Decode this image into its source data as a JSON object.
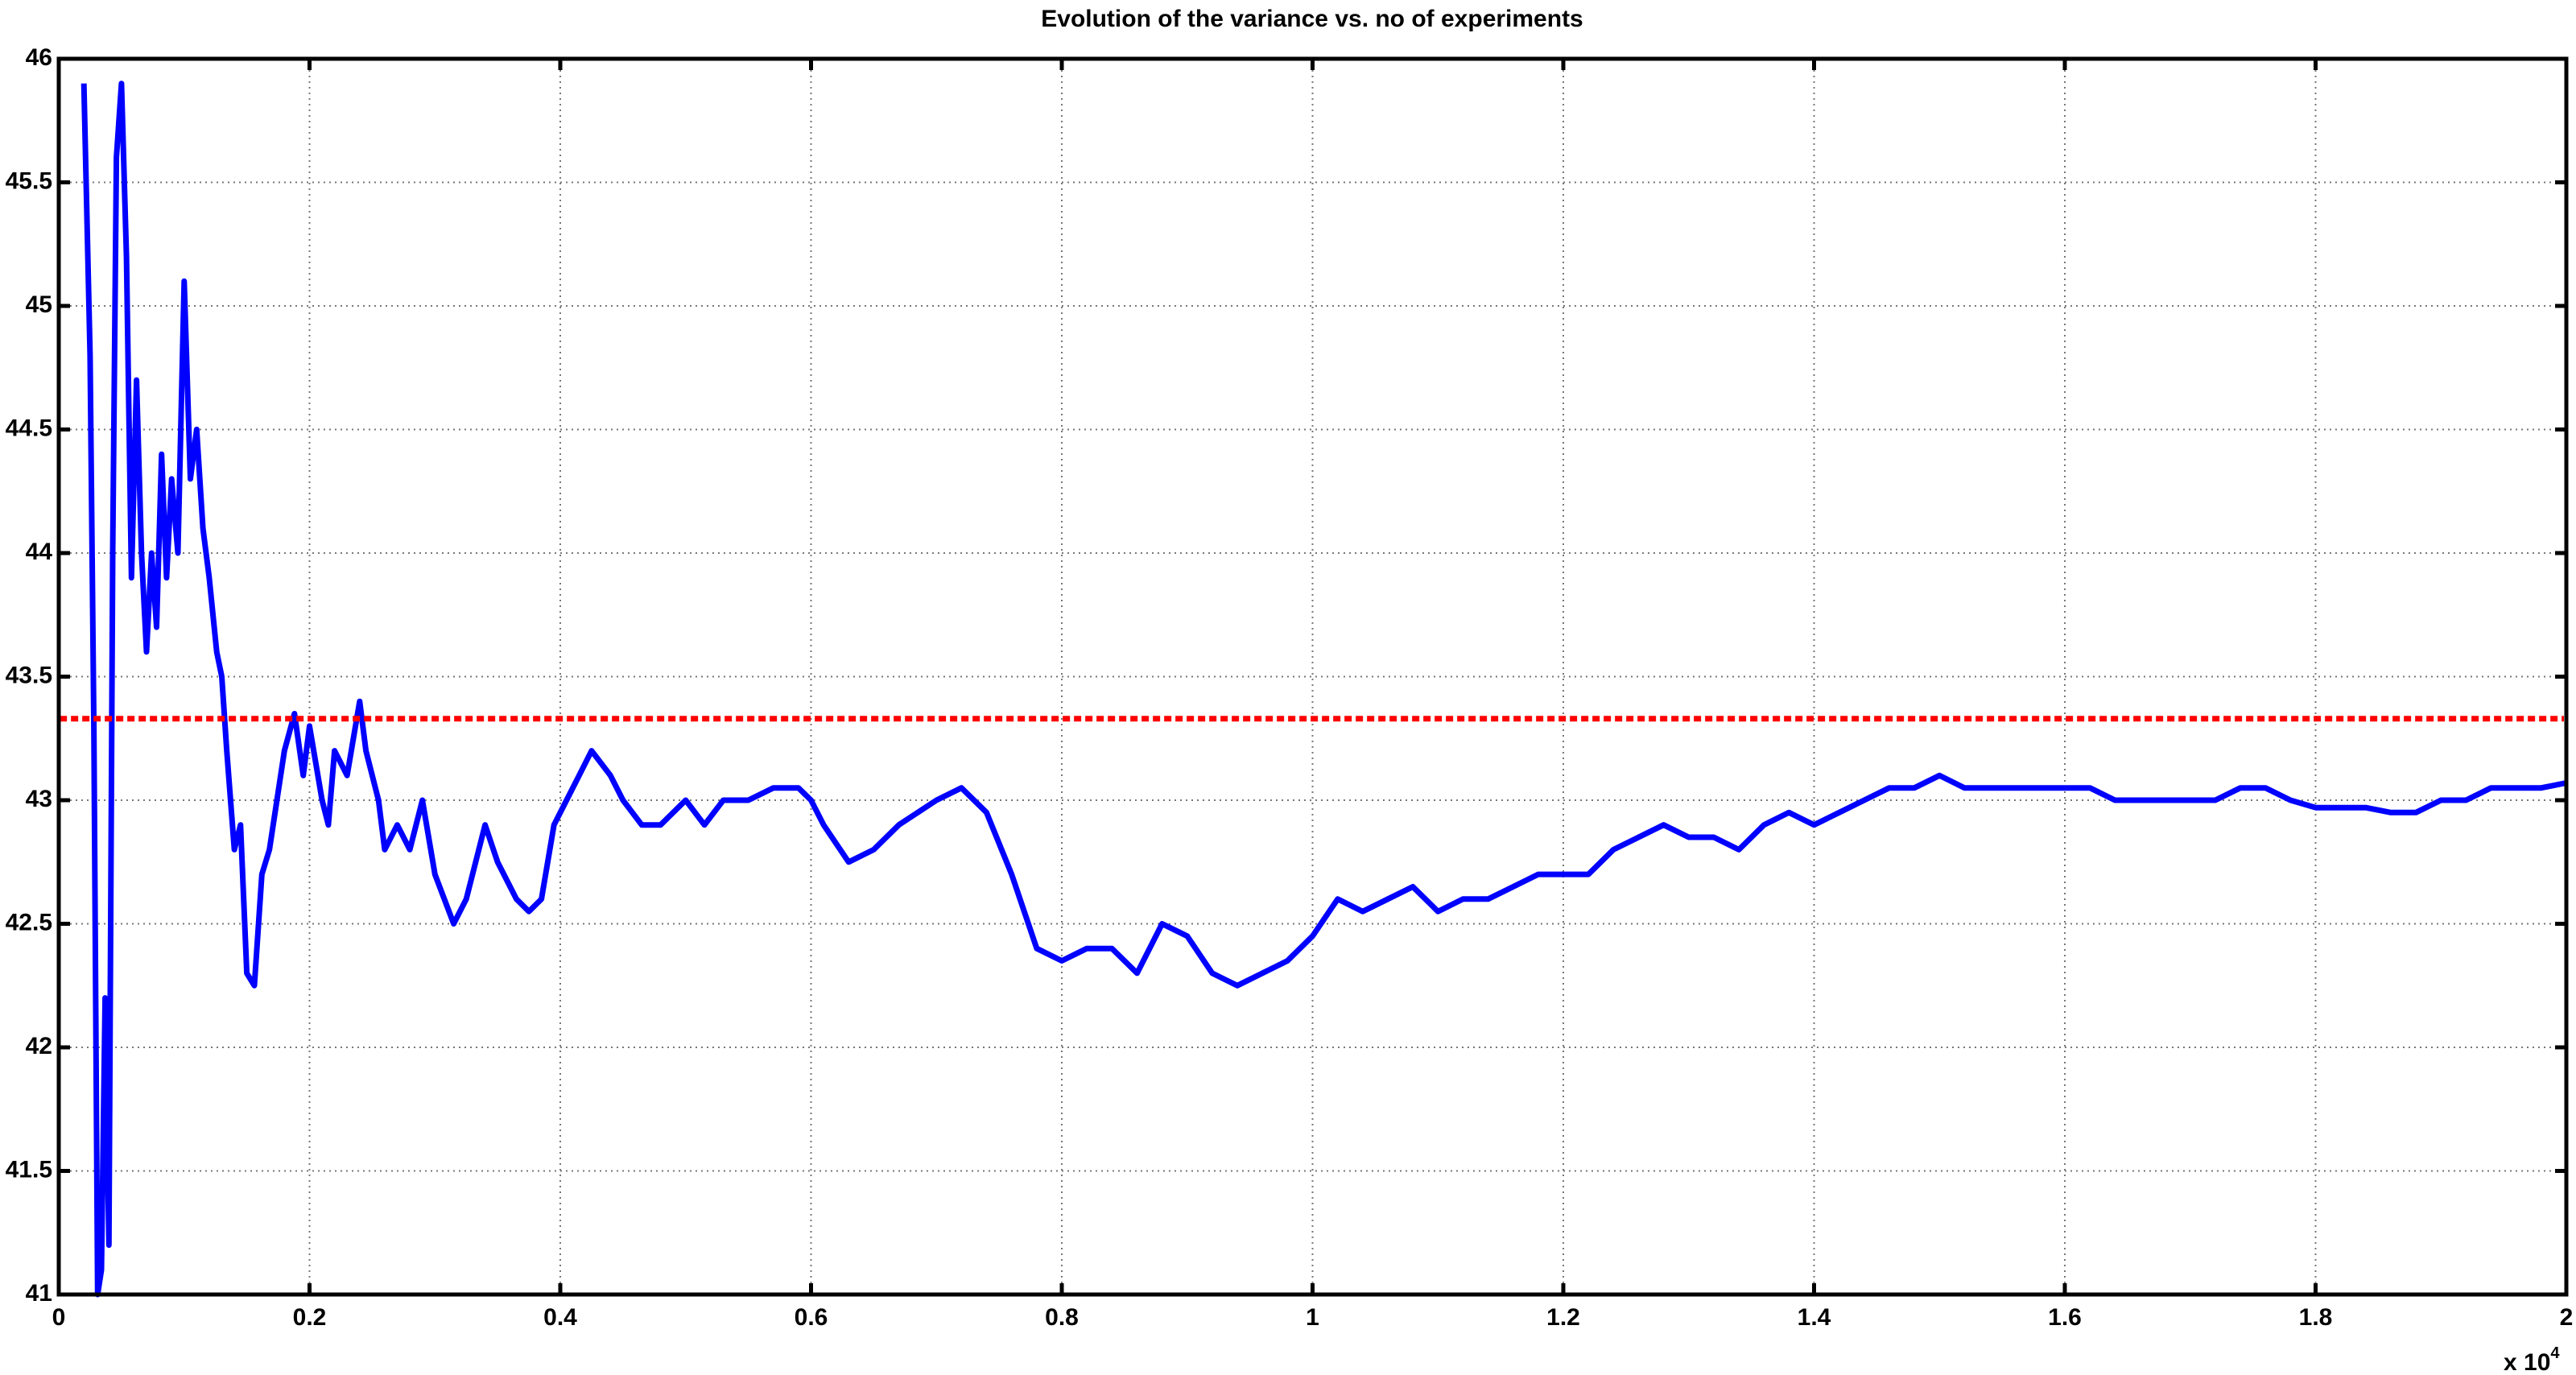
{
  "chart_data": {
    "type": "line",
    "title": "Evolution of the variance vs. no of experiments",
    "x_multiplier": {
      "base": "x 10",
      "exponent": "4"
    },
    "xlim": [
      0,
      20000
    ],
    "xticks": [
      {
        "value": 0,
        "label": "0"
      },
      {
        "value": 2000,
        "label": "0.2"
      },
      {
        "value": 4000,
        "label": "0.4"
      },
      {
        "value": 6000,
        "label": "0.6"
      },
      {
        "value": 8000,
        "label": "0.8"
      },
      {
        "value": 10000,
        "label": "1"
      },
      {
        "value": 12000,
        "label": "1.2"
      },
      {
        "value": 14000,
        "label": "1.4"
      },
      {
        "value": 16000,
        "label": "1.6"
      },
      {
        "value": 18000,
        "label": "1.8"
      },
      {
        "value": 20000,
        "label": "2"
      }
    ],
    "ylim": [
      41,
      46
    ],
    "yticks": [
      41,
      41.5,
      42,
      42.5,
      43,
      43.5,
      44,
      44.5,
      45,
      45.5,
      46
    ],
    "grid": true,
    "reference_line": {
      "value": 43.33,
      "color": "#ff0000"
    },
    "x": [
      200,
      250,
      280,
      310,
      340,
      370,
      400,
      430,
      460,
      500,
      540,
      580,
      620,
      660,
      700,
      740,
      780,
      820,
      860,
      900,
      950,
      1000,
      1050,
      1100,
      1150,
      1200,
      1260,
      1300,
      1340,
      1400,
      1450,
      1500,
      1560,
      1620,
      1680,
      1740,
      1800,
      1880,
      1950,
      2000,
      2100,
      2150,
      2200,
      2300,
      2400,
      2450,
      2550,
      2600,
      2700,
      2800,
      2900,
      3000,
      3150,
      3250,
      3400,
      3500,
      3650,
      3750,
      3850,
      3950,
      4050,
      4150,
      4250,
      4400,
      4500,
      4650,
      4800,
      5000,
      5150,
      5300,
      5500,
      5700,
      5900,
      6000,
      6100,
      6300,
      6500,
      6700,
      7000,
      7200,
      7400,
      7600,
      7800,
      8000,
      8200,
      8400,
      8600,
      8800,
      9000,
      9200,
      9400,
      9600,
      9800,
      10000,
      10200,
      10400,
      10600,
      10800,
      11000,
      11200,
      11400,
      11600,
      11800,
      12000,
      12200,
      12400,
      12600,
      12800,
      13000,
      13200,
      13400,
      13600,
      13800,
      14000,
      14200,
      14400,
      14600,
      14800,
      15000,
      15200,
      15400,
      15600,
      15800,
      16000,
      16200,
      16400,
      16600,
      16800,
      17000,
      17200,
      17400,
      17600,
      17800,
      18000,
      18200,
      18400,
      18600,
      18800,
      19000,
      19200,
      19400,
      19600,
      19800,
      20000
    ],
    "series": [
      {
        "color": "#0000ff",
        "values": [
          45.9,
          44.8,
          43.3,
          41.0,
          41.1,
          42.2,
          41.2,
          44.0,
          45.6,
          45.9,
          45.2,
          43.9,
          44.7,
          44.0,
          43.6,
          44.0,
          43.7,
          44.4,
          43.9,
          44.3,
          44.0,
          45.1,
          44.3,
          44.5,
          44.1,
          43.9,
          43.6,
          43.5,
          43.2,
          42.8,
          42.9,
          42.3,
          42.25,
          42.7,
          42.8,
          43.0,
          43.2,
          43.35,
          43.1,
          43.3,
          43.0,
          42.9,
          43.2,
          43.1,
          43.4,
          43.2,
          43.0,
          42.8,
          42.9,
          42.8,
          43.0,
          42.7,
          42.5,
          42.6,
          42.9,
          42.75,
          42.6,
          42.55,
          42.6,
          42.9,
          43.0,
          43.1,
          43.2,
          43.1,
          43.0,
          42.9,
          42.9,
          43.0,
          42.9,
          43.0,
          43.0,
          43.05,
          43.05,
          43.0,
          42.9,
          42.75,
          42.8,
          42.9,
          43.0,
          43.05,
          42.95,
          42.7,
          42.4,
          42.35,
          42.4,
          42.4,
          42.3,
          42.5,
          42.45,
          42.3,
          42.25,
          42.3,
          42.35,
          42.45,
          42.6,
          42.55,
          42.6,
          42.65,
          42.55,
          42.6,
          42.6,
          42.65,
          42.7,
          42.7,
          42.7,
          42.8,
          42.85,
          42.9,
          42.85,
          42.85,
          42.8,
          42.9,
          42.95,
          42.9,
          42.95,
          43.0,
          43.05,
          43.05,
          43.1,
          43.05,
          43.05,
          43.05,
          43.05,
          43.05,
          43.05,
          43.0,
          43.0,
          43.0,
          43.0,
          43.0,
          43.05,
          43.05,
          43.0,
          42.97,
          42.97,
          42.97,
          42.95,
          42.95,
          43.0,
          43.0,
          43.05,
          43.05,
          43.05,
          43.07
        ]
      }
    ]
  }
}
